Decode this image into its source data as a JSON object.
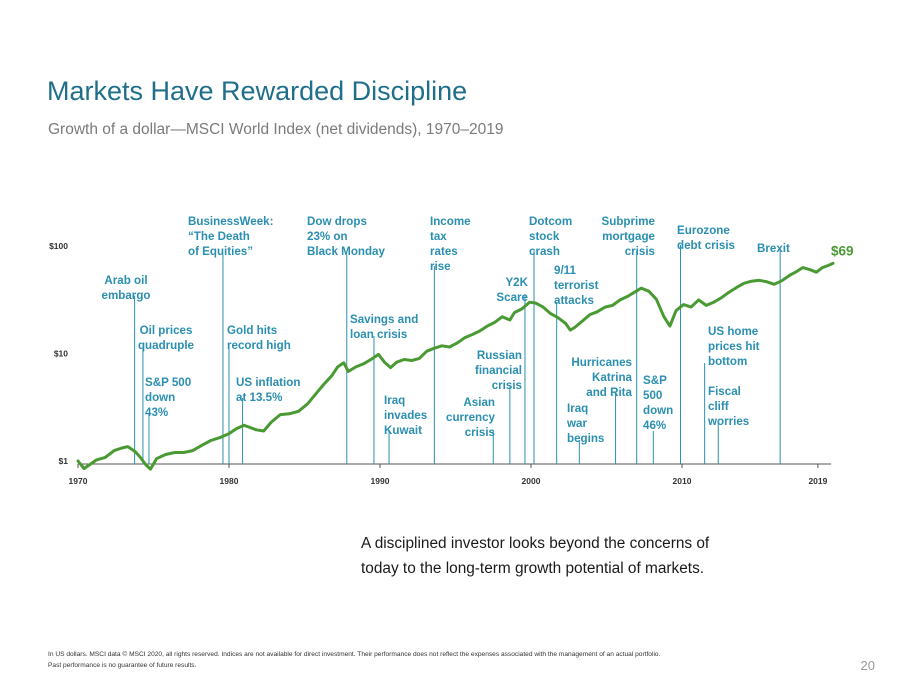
{
  "slide": {
    "title": "Markets Have Rewarded Discipline",
    "subtitle": "Growth of a dollar—MSCI World Index (net dividends), 1970–2019",
    "callout": "A disciplined investor looks beyond the concerns of today to the long-term growth potential of markets.",
    "footnote_line1": "In US dollars. MSCI data © MSCI 2020, all rights reserved. Indices are not available for direct investment. Their performance does not reflect the expenses associated with the management of an actual portfolio.",
    "footnote_line2": "Past performance is no guarantee of future results.",
    "page_number": "20"
  },
  "colors": {
    "line": "#4a9a33",
    "annotation": "#2a8fb0",
    "title": "#1f6f8b"
  },
  "chart_data": {
    "type": "line",
    "title": "Growth of a dollar—MSCI World Index (net dividends), 1970–2019",
    "xlabel": "",
    "ylabel": "",
    "y_scale": "log",
    "ylim": [
      1,
      100
    ],
    "xlim": [
      1970,
      2020
    ],
    "y_ticks": [
      {
        "value": 1,
        "label": "$1"
      },
      {
        "value": 10,
        "label": "$10"
      },
      {
        "value": 100,
        "label": "$100"
      }
    ],
    "x_ticks": [
      {
        "value": 1970,
        "label": "1970"
      },
      {
        "value": 1980,
        "label": "1980"
      },
      {
        "value": 1990,
        "label": "1990"
      },
      {
        "value": 2000,
        "label": "2000"
      },
      {
        "value": 2010,
        "label": "2010"
      },
      {
        "value": 2019,
        "label": "2019"
      }
    ],
    "grid": false,
    "end_label": "$69",
    "series": [
      {
        "points": [
          [
            1970.0,
            1.0
          ],
          [
            1970.4,
            0.85
          ],
          [
            1970.8,
            0.93
          ],
          [
            1971.2,
            1.02
          ],
          [
            1971.8,
            1.08
          ],
          [
            1972.4,
            1.25
          ],
          [
            1972.9,
            1.32
          ],
          [
            1973.3,
            1.36
          ],
          [
            1973.8,
            1.22
          ],
          [
            1974.2,
            1.05
          ],
          [
            1974.5,
            0.92
          ],
          [
            1974.8,
            0.84
          ],
          [
            1975.2,
            1.05
          ],
          [
            1975.8,
            1.15
          ],
          [
            1976.4,
            1.2
          ],
          [
            1977.0,
            1.2
          ],
          [
            1977.6,
            1.25
          ],
          [
            1978.2,
            1.4
          ],
          [
            1978.8,
            1.55
          ],
          [
            1979.4,
            1.65
          ],
          [
            1980.0,
            1.8
          ],
          [
            1980.5,
            2.0
          ],
          [
            1981.0,
            2.15
          ],
          [
            1981.4,
            2.05
          ],
          [
            1981.8,
            1.95
          ],
          [
            1982.3,
            1.9
          ],
          [
            1982.8,
            2.3
          ],
          [
            1983.4,
            2.7
          ],
          [
            1984.0,
            2.75
          ],
          [
            1984.6,
            2.9
          ],
          [
            1985.2,
            3.4
          ],
          [
            1985.8,
            4.3
          ],
          [
            1986.3,
            5.2
          ],
          [
            1986.8,
            6.2
          ],
          [
            1987.2,
            7.5
          ],
          [
            1987.6,
            8.2
          ],
          [
            1987.9,
            6.8
          ],
          [
            1988.4,
            7.5
          ],
          [
            1988.9,
            8.0
          ],
          [
            1989.4,
            8.8
          ],
          [
            1989.9,
            9.8
          ],
          [
            1990.3,
            8.3
          ],
          [
            1990.7,
            7.4
          ],
          [
            1991.1,
            8.3
          ],
          [
            1991.6,
            8.8
          ],
          [
            1992.1,
            8.6
          ],
          [
            1992.6,
            9.0
          ],
          [
            1993.1,
            10.5
          ],
          [
            1993.6,
            11.2
          ],
          [
            1994.1,
            11.8
          ],
          [
            1994.6,
            11.5
          ],
          [
            1995.1,
            12.5
          ],
          [
            1995.6,
            14.0
          ],
          [
            1996.1,
            15.0
          ],
          [
            1996.6,
            16.2
          ],
          [
            1997.1,
            18.0
          ],
          [
            1997.6,
            19.5
          ],
          [
            1998.1,
            22.0
          ],
          [
            1998.6,
            20.5
          ],
          [
            1998.9,
            24.0
          ],
          [
            1999.4,
            26.0
          ],
          [
            1999.9,
            30.0
          ],
          [
            2000.3,
            29.5
          ],
          [
            2000.8,
            27.0
          ],
          [
            2001.3,
            23.5
          ],
          [
            2001.8,
            21.5
          ],
          [
            2002.3,
            19.0
          ],
          [
            2002.6,
            16.5
          ],
          [
            2002.9,
            17.5
          ],
          [
            2003.4,
            20.0
          ],
          [
            2003.9,
            23.0
          ],
          [
            2004.4,
            24.5
          ],
          [
            2004.9,
            27.0
          ],
          [
            2005.4,
            28.0
          ],
          [
            2005.9,
            31.5
          ],
          [
            2006.4,
            34.0
          ],
          [
            2006.9,
            37.5
          ],
          [
            2007.3,
            40.5
          ],
          [
            2007.8,
            38.0
          ],
          [
            2008.3,
            32.0
          ],
          [
            2008.8,
            22.0
          ],
          [
            2009.2,
            18.0
          ],
          [
            2009.6,
            25.0
          ],
          [
            2010.1,
            28.5
          ],
          [
            2010.6,
            27.0
          ],
          [
            2011.1,
            31.5
          ],
          [
            2011.6,
            28.0
          ],
          [
            2012.1,
            30.0
          ],
          [
            2012.6,
            33.0
          ],
          [
            2013.1,
            37.0
          ],
          [
            2013.6,
            41.0
          ],
          [
            2014.1,
            45.0
          ],
          [
            2014.6,
            47.0
          ],
          [
            2015.1,
            48.0
          ],
          [
            2015.6,
            46.5
          ],
          [
            2016.1,
            44.0
          ],
          [
            2016.6,
            47.5
          ],
          [
            2017.1,
            53.0
          ],
          [
            2017.6,
            58.0
          ],
          [
            2018.0,
            63.0
          ],
          [
            2018.5,
            60.0
          ],
          [
            2018.9,
            57.0
          ],
          [
            2019.3,
            63.0
          ],
          [
            2019.7,
            66.0
          ],
          [
            2020.0,
            69.0
          ]
        ]
      }
    ],
    "annotations": [
      {
        "name": "arab-oil-embargo",
        "lines": [
          "Arab oil",
          "embargo"
        ],
        "year": 1973.75
      },
      {
        "name": "oil-prices-quadruple",
        "lines": [
          "Oil prices",
          "quadruple"
        ],
        "year": 1974.3
      },
      {
        "name": "sp500-down-43",
        "lines": [
          "S&P 500",
          "down",
          "43%"
        ],
        "year": 1974.7
      },
      {
        "name": "businessweek-death-of-equities",
        "lines": [
          "BusinessWeek:",
          "“The Death",
          "of Equities”"
        ],
        "year": 1979.6
      },
      {
        "name": "gold-hits-record-high",
        "lines": [
          "Gold hits",
          "record high"
        ],
        "year": 1980.0
      },
      {
        "name": "us-inflation",
        "lines": [
          "US inflation",
          "at 13.5%"
        ],
        "year": 1980.9
      },
      {
        "name": "dow-drops-black-monday",
        "lines": [
          "Dow drops",
          "23% on",
          "Black Monday"
        ],
        "year": 1987.8
      },
      {
        "name": "savings-and-loan-crisis",
        "lines": [
          "Savings and",
          "loan crisis"
        ],
        "year": 1989.6
      },
      {
        "name": "iraq-invades-kuwait",
        "lines": [
          "Iraq",
          "invades",
          "Kuwait"
        ],
        "year": 1990.6
      },
      {
        "name": "income-tax-rates-rise",
        "lines": [
          "Income",
          "tax",
          "rates",
          "rise"
        ],
        "year": 1993.6
      },
      {
        "name": "asian-currency-crisis",
        "lines": [
          "Asian",
          "currency",
          "crisis"
        ],
        "year": 1997.5
      },
      {
        "name": "russian-financial-crisis",
        "lines": [
          "Russian",
          "financial",
          "crisis"
        ],
        "year": 1998.6
      },
      {
        "name": "y2k-scare",
        "lines": [
          "Y2K",
          "Scare"
        ],
        "year": 1999.6
      },
      {
        "name": "dotcom-stock-crash",
        "lines": [
          "Dotcom",
          "stock",
          "crash"
        ],
        "year": 2000.2
      },
      {
        "name": "terrorist-attacks",
        "lines": [
          "9/11",
          "terrorist",
          "attacks"
        ],
        "year": 2001.7
      },
      {
        "name": "iraq-war-begins",
        "lines": [
          "Iraq",
          "war",
          "begins"
        ],
        "year": 2003.2
      },
      {
        "name": "hurricanes-katrina-rita",
        "lines": [
          "Hurricanes",
          "Katrina",
          "and Rita"
        ],
        "year": 2005.6
      },
      {
        "name": "subprime-mortgage-crisis",
        "lines": [
          "Subprime",
          "mortgage",
          "crisis"
        ],
        "year": 2007.0
      },
      {
        "name": "sp500-down-46",
        "lines": [
          "S&P",
          "500",
          "down",
          "46%"
        ],
        "year": 2008.1
      },
      {
        "name": "eurozone-debt-crisis",
        "lines": [
          "Eurozone",
          "debt crisis"
        ],
        "year": 2009.9
      },
      {
        "name": "us-home-prices-hit-bottom",
        "lines": [
          "US home",
          "prices hit",
          "bottom"
        ],
        "year": 2011.5
      },
      {
        "name": "fiscal-cliff-worries",
        "lines": [
          "Fiscal",
          "cliff",
          "worries"
        ],
        "year": 2012.4
      },
      {
        "name": "brexit",
        "lines": [
          "Brexit"
        ],
        "year": 2016.5
      }
    ]
  }
}
